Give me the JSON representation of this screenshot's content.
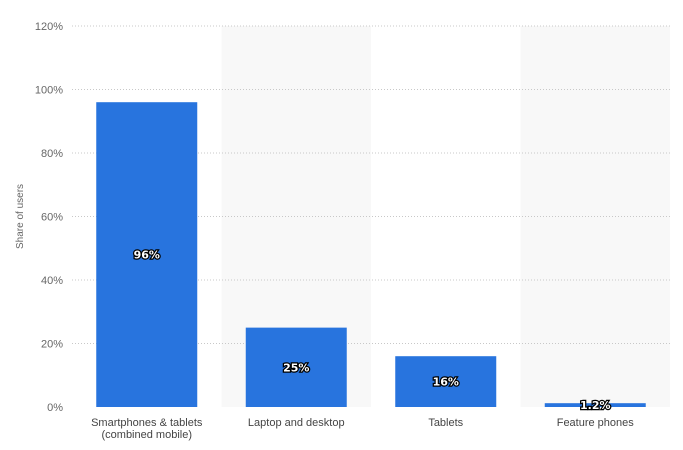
{
  "chart_data": {
    "type": "bar",
    "categories": [
      [
        "Smartphones & tablets",
        "(combined mobile)"
      ],
      [
        "Laptop and desktop"
      ],
      [
        "Tablets"
      ],
      [
        "Feature phones"
      ]
    ],
    "values": [
      96,
      25,
      16,
      1.2
    ],
    "data_labels": [
      "96%",
      "25%",
      "16%",
      "1.2%"
    ],
    "y_ticks": [
      "0%",
      "20%",
      "40%",
      "60%",
      "80%",
      "100%",
      "120%"
    ],
    "y_tick_values": [
      0,
      20,
      40,
      60,
      80,
      100,
      120
    ],
    "ylim": [
      0,
      120
    ],
    "title": "",
    "xlabel": "",
    "ylabel": "Share of users",
    "grid": true,
    "bar_color": "#2874de",
    "band_color": "#f8f8f8",
    "grid_color": "#c8c8c8"
  }
}
